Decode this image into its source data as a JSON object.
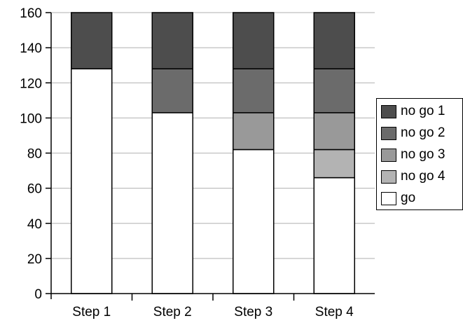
{
  "chart_data": {
    "type": "bar",
    "stacked": true,
    "categories": [
      "Step 1",
      "Step 2",
      "Step 3",
      "Step 4"
    ],
    "series": [
      {
        "name": "go",
        "color": "#ffffff",
        "values": [
          128,
          103,
          82,
          66
        ]
      },
      {
        "name": "no go 4",
        "color": "#b3b3b3",
        "values": [
          0,
          0,
          0,
          16
        ]
      },
      {
        "name": "no go 3",
        "color": "#999999",
        "values": [
          0,
          0,
          21,
          21
        ]
      },
      {
        "name": "no go 2",
        "color": "#6b6b6b",
        "values": [
          0,
          25,
          25,
          25
        ]
      },
      {
        "name": "no go 1",
        "color": "#4d4d4d",
        "values": [
          32,
          32,
          32,
          32
        ]
      }
    ],
    "legend_order": [
      "no go 1",
      "no go 2",
      "no go 3",
      "no go 4",
      "go"
    ],
    "title": "",
    "xlabel": "",
    "ylabel": "",
    "ylim": [
      0,
      160
    ],
    "yticks": [
      "0",
      "20",
      "40",
      "60",
      "80",
      "100",
      "120",
      "140",
      "160"
    ],
    "grid": true,
    "legend_position": "right"
  }
}
